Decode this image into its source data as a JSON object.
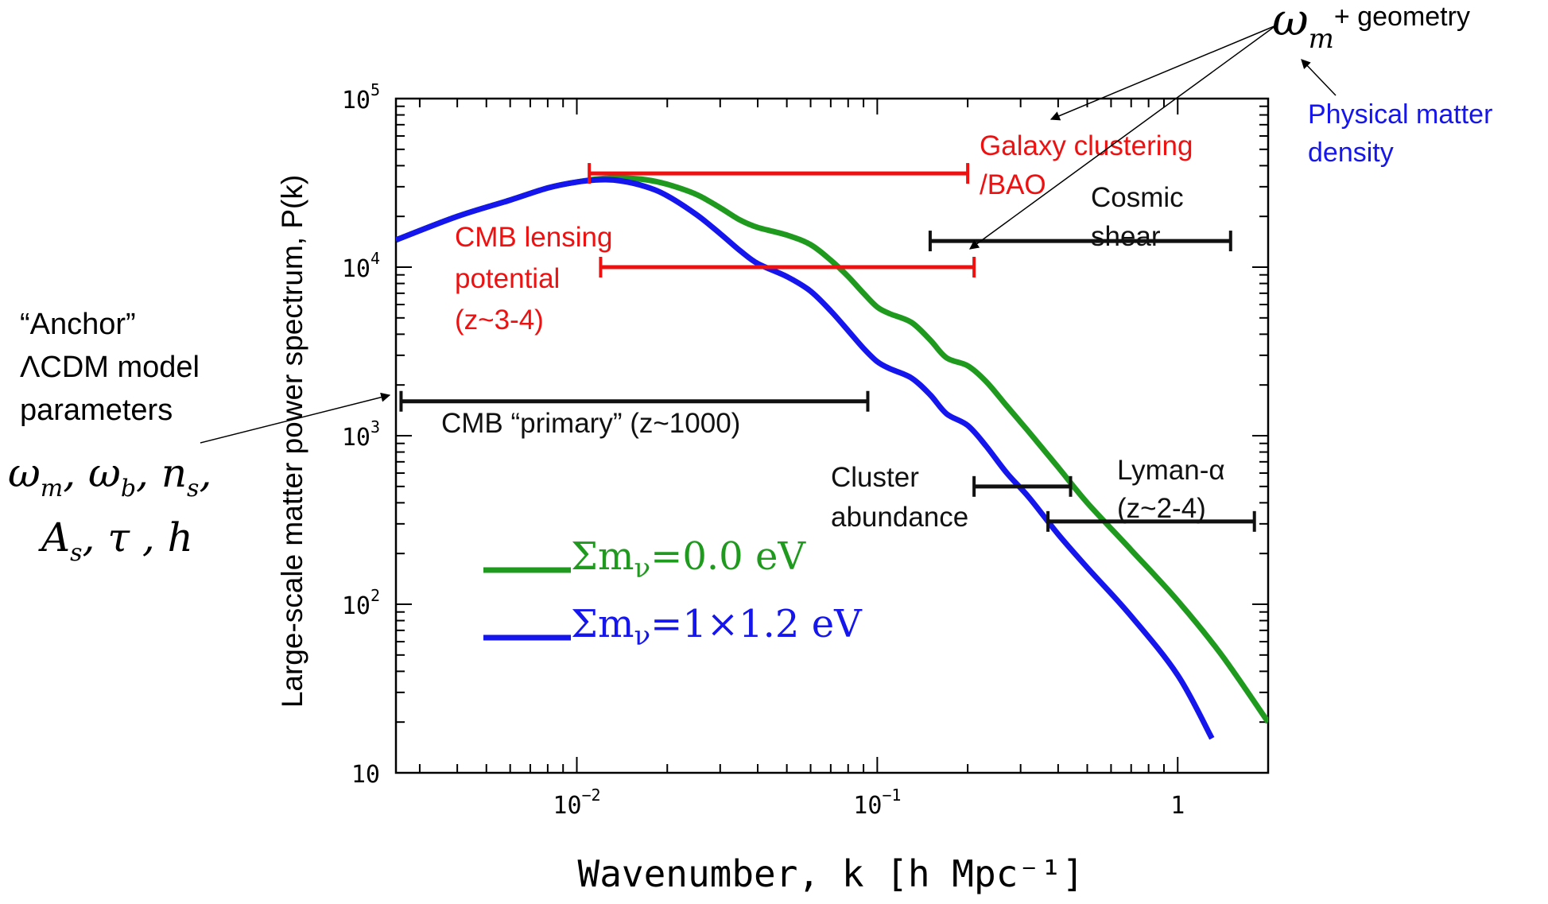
{
  "chart_data": {
    "type": "line",
    "xscale": "log",
    "yscale": "log",
    "xlim": [
      0.0025,
      2.0
    ],
    "ylim": [
      10,
      100000
    ],
    "ylabel": "Large-scale matter power spectrum, P(k)",
    "xlabel": "Wavenumber, k [h Mpc⁻¹]",
    "xticklabels": [
      {
        "value": 0.01,
        "mantissa": "10",
        "exp": "−2"
      },
      {
        "value": 0.1,
        "mantissa": "10",
        "exp": "−1"
      },
      {
        "value": 1,
        "mantissa": "1",
        "exp": ""
      }
    ],
    "yticklabels": [
      {
        "value": 10,
        "mantissa": "10",
        "exp": ""
      },
      {
        "value": 100,
        "mantissa": "10",
        "exp": "2"
      },
      {
        "value": 1000,
        "mantissa": "10",
        "exp": "3"
      },
      {
        "value": 10000,
        "mantissa": "10",
        "exp": "4"
      },
      {
        "value": 100000,
        "mantissa": "10",
        "exp": "5"
      }
    ],
    "series": [
      {
        "color": "#1f9a1f",
        "legend": {
          "prefix": "Σm",
          "sub": "ν",
          "value": "=0.0 eV"
        },
        "points": [
          [
            0.0025,
            14500
          ],
          [
            0.004,
            20000
          ],
          [
            0.006,
            25000
          ],
          [
            0.008,
            29500
          ],
          [
            0.01,
            32000
          ],
          [
            0.012,
            33500
          ],
          [
            0.014,
            33800
          ],
          [
            0.017,
            33000
          ],
          [
            0.02,
            31000
          ],
          [
            0.025,
            27000
          ],
          [
            0.03,
            22500
          ],
          [
            0.035,
            19000
          ],
          [
            0.04,
            17200
          ],
          [
            0.05,
            15500
          ],
          [
            0.06,
            13600
          ],
          [
            0.07,
            11000
          ],
          [
            0.08,
            8800
          ],
          [
            0.09,
            7000
          ],
          [
            0.1,
            5800
          ],
          [
            0.11,
            5300
          ],
          [
            0.13,
            4700
          ],
          [
            0.15,
            3700
          ],
          [
            0.17,
            2900
          ],
          [
            0.2,
            2600
          ],
          [
            0.23,
            2100
          ],
          [
            0.27,
            1500
          ],
          [
            0.32,
            1050
          ],
          [
            0.4,
            650
          ],
          [
            0.5,
            400
          ],
          [
            0.7,
            210
          ],
          [
            1.0,
            105
          ],
          [
            1.4,
            50
          ],
          [
            2.0,
            20
          ]
        ]
      },
      {
        "color": "#1515ee",
        "legend": {
          "prefix": "Σm",
          "sub": "ν",
          "value": "=1×1.2 eV"
        },
        "points": [
          [
            0.0025,
            14500
          ],
          [
            0.004,
            20000
          ],
          [
            0.006,
            25000
          ],
          [
            0.008,
            29500
          ],
          [
            0.01,
            32000
          ],
          [
            0.012,
            33000
          ],
          [
            0.014,
            32500
          ],
          [
            0.017,
            30000
          ],
          [
            0.02,
            26500
          ],
          [
            0.025,
            20500
          ],
          [
            0.03,
            15800
          ],
          [
            0.035,
            12500
          ],
          [
            0.04,
            10500
          ],
          [
            0.05,
            8800
          ],
          [
            0.06,
            7200
          ],
          [
            0.07,
            5500
          ],
          [
            0.08,
            4200
          ],
          [
            0.09,
            3300
          ],
          [
            0.1,
            2750
          ],
          [
            0.11,
            2500
          ],
          [
            0.13,
            2200
          ],
          [
            0.15,
            1750
          ],
          [
            0.17,
            1350
          ],
          [
            0.2,
            1150
          ],
          [
            0.23,
            870
          ],
          [
            0.27,
            600
          ],
          [
            0.32,
            430
          ],
          [
            0.4,
            260
          ],
          [
            0.5,
            165
          ],
          [
            0.7,
            85
          ],
          [
            1.0,
            38
          ],
          [
            1.3,
            16
          ]
        ]
      }
    ],
    "ranges": [
      {
        "label_lines": [
          "Galaxy clustering",
          "/BAO"
        ],
        "color": "#ee1111",
        "kmin": 0.011,
        "kmax": 0.2,
        "y": 36000
      },
      {
        "label_lines": [
          "CMB lensing",
          "potential",
          "(z~3-4)"
        ],
        "color": "#ee1111",
        "kmin": 0.012,
        "kmax": 0.21,
        "y": 10000
      },
      {
        "label_lines": [
          "Cosmic",
          "shear"
        ],
        "color": "#111111",
        "kmin": 0.15,
        "kmax": 1.5,
        "y": 14300
      },
      {
        "label_lines": [
          "CMB “primary” (z~1000)"
        ],
        "color": "#111111",
        "kmin": 0.0026,
        "kmax": 0.093,
        "y": 1600
      },
      {
        "label_lines": [
          "Cluster",
          "abundance"
        ],
        "color": "#111111",
        "kmin": 0.21,
        "kmax": 0.44,
        "y": 500
      },
      {
        "label_lines": [
          "Lyman-α",
          "(z~2-4)"
        ],
        "color": "#111111",
        "kmin": 0.37,
        "kmax": 1.8,
        "y": 310
      }
    ]
  },
  "annotations": {
    "geometry": {
      "symbol": "ω",
      "sub": "m",
      "text": "+ geometry"
    },
    "physical": [
      "Physical matter",
      "density"
    ],
    "anchor": [
      "“Anchor”",
      "ΛCDM model",
      "parameters"
    ],
    "params_line1": [
      "ω",
      "m",
      ", ",
      "ω",
      "b",
      ", ",
      "n",
      "s",
      ","
    ],
    "params_line2": [
      "A",
      "s",
      ", ",
      "τ",
      " , ",
      "h"
    ]
  }
}
